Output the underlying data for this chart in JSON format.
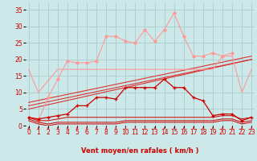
{
  "x": [
    0,
    1,
    2,
    3,
    4,
    5,
    6,
    7,
    8,
    9,
    10,
    11,
    12,
    13,
    14,
    15,
    16,
    17,
    18,
    19,
    20,
    21,
    22,
    23
  ],
  "series_light_pink_peaks": [
    2.5,
    1.5,
    8.5,
    14,
    19.5,
    19,
    19,
    19.5,
    27,
    27,
    25.5,
    25,
    29,
    25.5,
    29,
    34,
    27,
    21,
    21,
    22,
    21,
    22,
    null,
    null
  ],
  "series_quasi_horiz": [
    17,
    10,
    null,
    17,
    17,
    17,
    17,
    17,
    17,
    17,
    17,
    17,
    17,
    17,
    17,
    17,
    17,
    17,
    17,
    17,
    21,
    21,
    10,
    17
  ],
  "series_dark_red": [
    2.5,
    2,
    2.5,
    3,
    3.5,
    6,
    6,
    8.5,
    8.5,
    8,
    11.5,
    11.5,
    11.5,
    11.5,
    14,
    11.5,
    11.5,
    8.5,
    7.5,
    3,
    3.5,
    3.5,
    1.5,
    2.5
  ],
  "series_flat1": [
    2.5,
    1.5,
    1.5,
    2,
    2.5,
    2.5,
    2.5,
    2.5,
    2.5,
    2.5,
    2.5,
    2.5,
    2.5,
    2.5,
    2.5,
    2.5,
    2.5,
    2.5,
    2.5,
    2.5,
    3.0,
    3.0,
    2.0,
    2.5
  ],
  "series_flat2": [
    2.0,
    1.0,
    0.5,
    1,
    1,
    1,
    1,
    1,
    1,
    1,
    1.5,
    1.5,
    1.5,
    1.5,
    1.5,
    1.5,
    1.5,
    1.5,
    1.5,
    1.5,
    2,
    2,
    1,
    1.5
  ],
  "series_flat3": [
    1.5,
    0.5,
    0,
    0.5,
    0.5,
    0.5,
    0.5,
    0.5,
    0.5,
    0.5,
    1,
    1,
    1,
    1,
    1,
    1,
    1,
    1,
    1,
    1,
    1.5,
    1.5,
    0.5,
    1
  ],
  "diag_lines": [
    {
      "x0": 0,
      "y0": 5,
      "x1": 23,
      "y1": 20
    },
    {
      "x0": 0,
      "y0": 6,
      "x1": 23,
      "y1": 20
    },
    {
      "x0": 0,
      "y0": 7,
      "x1": 23,
      "y1": 21
    }
  ],
  "arrow_angles": [
    90,
    90,
    80,
    75,
    75,
    75,
    75,
    75,
    75,
    75,
    75,
    75,
    75,
    75,
    75,
    75,
    75,
    75,
    70,
    70,
    115,
    120,
    135,
    80
  ],
  "bg_color": "#cce8e8",
  "grid_color": "#aacccc",
  "color_light": "#ff9999",
  "color_dark": "#cc0000",
  "color_med": "#dd3333",
  "xlabel": "Vent moyen/en rafales ( km/h )",
  "ylim": [
    -3,
    37
  ],
  "plot_ylim": [
    0,
    37
  ],
  "xlim": [
    -0.3,
    23.3
  ],
  "yticks": [
    0,
    5,
    10,
    15,
    20,
    25,
    30,
    35
  ],
  "xticks": [
    0,
    1,
    2,
    3,
    4,
    5,
    6,
    7,
    8,
    9,
    10,
    11,
    12,
    13,
    14,
    15,
    16,
    17,
    18,
    19,
    20,
    21,
    22,
    23
  ]
}
